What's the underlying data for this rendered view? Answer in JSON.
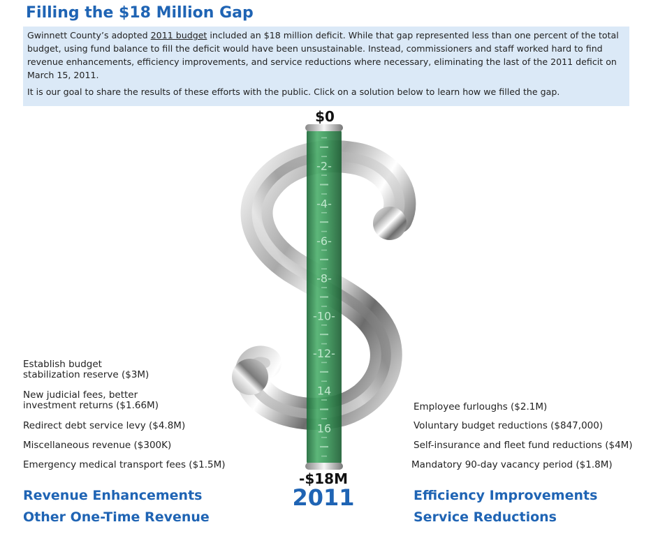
{
  "header": {
    "title": "Filling the $18 Million Gap"
  },
  "intro": {
    "p1_before": "Gwinnett County’s adopted ",
    "p1_link": "2011 budget",
    "p1_after": " included an $18 million deficit. While that gap represented less than one percent of the total budget, using fund balance to fill the deficit would have been unsustainable. Instead, commissioners and staff worked hard to find revenue enhancements, efficiency improvements, and service reductions where necessary, eliminating the last of the 2011 deficit on March 15, 2011.",
    "p2": "It is our goal to share the results of these efforts with the public. Click on a solution below to learn how we filled the gap."
  },
  "gauge": {
    "top_label": "$0",
    "bottom_label": "-$18M",
    "year_label": "2011",
    "scale_max": 18,
    "tick_labels": [
      "-2-",
      "-4-",
      "-6-",
      "-8-",
      "-10-",
      "-12-",
      "14",
      "16"
    ],
    "tick_values": [
      2,
      4,
      6,
      8,
      10,
      12,
      14,
      16
    ],
    "fill_color": "#3d9a5c",
    "accent_color": "#1f64b4"
  },
  "left_items": [
    {
      "line1": "Establish budget",
      "line2": "stabilization reserve ($3M)"
    },
    {
      "line1": "New judicial fees, better",
      "line2": "investment returns ($1.66M)"
    },
    {
      "line1": "Redirect debt service levy ($4.8M)"
    },
    {
      "line1": "Miscellaneous revenue ($300K)"
    },
    {
      "line1": "Emergency medical transport fees ($1.5M)"
    }
  ],
  "right_items": [
    {
      "line1": "Employee furloughs ($2.1M)"
    },
    {
      "line1": "Voluntary budget reductions ($847,000)"
    },
    {
      "line1": "Self-insurance and fleet fund reductions ($4M)"
    },
    {
      "line1": "Mandatory 90-day vacancy period ($1.8M)"
    }
  ],
  "categories": {
    "revenue_enhancements": "Revenue Enhancements",
    "other_one_time_revenue": "Other One-Time Revenue",
    "efficiency_improvements": "Efficiency Improvements",
    "service_reductions": "Service Reductions"
  }
}
